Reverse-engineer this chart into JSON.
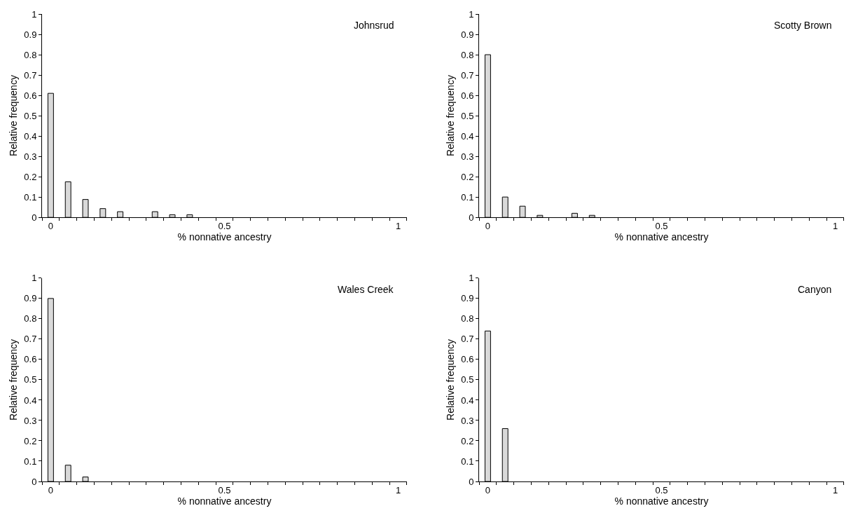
{
  "chart_data": [
    {
      "type": "bar",
      "title": "Johnsrud",
      "xlabel": "% nonnative ancestry",
      "ylabel": "Relative frequency",
      "categories": [
        "0",
        null,
        null,
        null,
        null,
        null,
        null,
        null,
        null,
        null,
        "0.5",
        null,
        null,
        null,
        null,
        null,
        null,
        null,
        null,
        null,
        "1"
      ],
      "values": [
        0.61,
        0.175,
        0.088,
        0.043,
        0.028,
        0,
        0.028,
        0.013,
        0.013,
        0,
        0,
        0,
        0,
        0,
        0,
        0,
        0,
        0,
        0,
        0,
        0
      ],
      "color": "#d9d9d9",
      "ylim": [
        0,
        1
      ],
      "yticks": [
        0,
        0.1,
        0.2,
        0.3,
        0.4,
        0.5,
        0.6,
        0.7,
        0.8,
        0.9,
        1
      ]
    },
    {
      "type": "bar",
      "title": "Scotty Brown",
      "xlabel": "% nonnative ancestry",
      "ylabel": "Relative frequency",
      "categories": [
        "0",
        null,
        null,
        null,
        null,
        null,
        null,
        null,
        null,
        null,
        "0.5",
        null,
        null,
        null,
        null,
        null,
        null,
        null,
        null,
        null,
        "1"
      ],
      "values": [
        0.8,
        0.1,
        0.055,
        0.01,
        0,
        0.02,
        0.01,
        0,
        0,
        0,
        0,
        0,
        0,
        0,
        0,
        0,
        0,
        0,
        0,
        0,
        0
      ],
      "color": "#d9d9d9",
      "ylim": [
        0,
        1
      ],
      "yticks": [
        0,
        0.1,
        0.2,
        0.3,
        0.4,
        0.5,
        0.6,
        0.7,
        0.8,
        0.9,
        1
      ]
    },
    {
      "type": "bar",
      "title": "Wales Creek",
      "xlabel": "% nonnative ancestry",
      "ylabel": "Relative frequency",
      "categories": [
        "0",
        null,
        null,
        null,
        null,
        null,
        null,
        null,
        null,
        null,
        "0.5",
        null,
        null,
        null,
        null,
        null,
        null,
        null,
        null,
        null,
        "1"
      ],
      "values": [
        0.9,
        0.08,
        0.022,
        0,
        0,
        0,
        0,
        0,
        0,
        0,
        0,
        0,
        0,
        0,
        0,
        0,
        0,
        0,
        0,
        0,
        0
      ],
      "color": "#d9d9d9",
      "ylim": [
        0,
        1
      ],
      "yticks": [
        0,
        0.1,
        0.2,
        0.3,
        0.4,
        0.5,
        0.6,
        0.7,
        0.8,
        0.9,
        1
      ]
    },
    {
      "type": "bar",
      "title": "Canyon",
      "xlabel": "% nonnative ancestry",
      "ylabel": "Relative frequency",
      "categories": [
        "0",
        null,
        null,
        null,
        null,
        null,
        null,
        null,
        null,
        null,
        "0.5",
        null,
        null,
        null,
        null,
        null,
        null,
        null,
        null,
        null,
        "1"
      ],
      "values": [
        0.74,
        0.26,
        0,
        0,
        0,
        0,
        0,
        0,
        0,
        0,
        0,
        0,
        0,
        0,
        0,
        0,
        0,
        0,
        0,
        0,
        0
      ],
      "color": "#d9d9d9",
      "ylim": [
        0,
        1
      ],
      "yticks": [
        0,
        0.1,
        0.2,
        0.3,
        0.4,
        0.5,
        0.6,
        0.7,
        0.8,
        0.9,
        1
      ]
    }
  ]
}
